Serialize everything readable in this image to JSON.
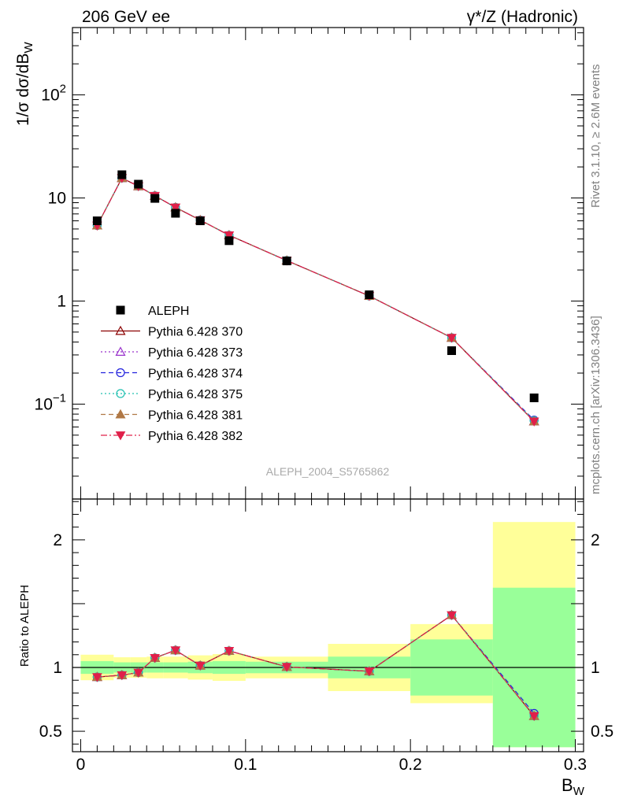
{
  "header": {
    "left": "206 GeV ee",
    "right": "γ*/Z (Hadronic)"
  },
  "side_text": {
    "top": "Rivet 3.1.10, ≥ 2.6M events",
    "bottom": "mcplots.cern.ch [arXiv:1306.3436]"
  },
  "analysis_label": "ALEPH_2004_S5765862",
  "chart_data": [
    {
      "type": "line",
      "panel": "main",
      "ylabel": "1/σ dσ/dB_W",
      "yscale": "log",
      "ylim": [
        0.012,
        450
      ],
      "xlim": [
        -0.005,
        0.305
      ],
      "ytick_labels": [
        {
          "value": 100,
          "base": "10",
          "exp": "2"
        },
        {
          "value": 10,
          "text": "10"
        },
        {
          "value": 1,
          "text": "1"
        },
        {
          "value": 0.1,
          "base": "10",
          "exp": "−1"
        }
      ],
      "x": [
        0.01,
        0.025,
        0.035,
        0.045,
        0.0575,
        0.0725,
        0.09,
        0.125,
        0.175,
        0.225,
        0.275
      ],
      "bin_edges": [
        0.0,
        0.02,
        0.03,
        0.04,
        0.05,
        0.065,
        0.08,
        0.1,
        0.15,
        0.2,
        0.25,
        0.3
      ],
      "data": {
        "name": "ALEPH",
        "values": [
          6.0,
          16.8,
          13.6,
          9.9,
          7.1,
          6.0,
          3.85,
          2.45,
          1.15,
          0.33,
          0.115
        ]
      },
      "series": [
        {
          "name": "Pythia 6.428 370",
          "color": "#8b0000",
          "dash": "",
          "marker": "triangle-open",
          "values": [
            5.4,
            15.6,
            13.0,
            10.5,
            8.1,
            6.1,
            4.35,
            2.47,
            1.12,
            0.44,
            0.068
          ]
        },
        {
          "name": "Pythia 6.428 373",
          "color": "#9932cc",
          "dash": "2,3",
          "marker": "triangle-open",
          "values": [
            5.4,
            15.6,
            13.0,
            10.5,
            8.1,
            6.1,
            4.35,
            2.47,
            1.12,
            0.44,
            0.068
          ]
        },
        {
          "name": "Pythia 6.428 374",
          "color": "#2222dd",
          "dash": "6,4",
          "marker": "circle-open",
          "values": [
            5.4,
            15.6,
            13.0,
            10.5,
            8.1,
            6.1,
            4.35,
            2.47,
            1.12,
            0.44,
            0.07
          ]
        },
        {
          "name": "Pythia 6.428 375",
          "color": "#20c0b0",
          "dash": "2,3",
          "marker": "circle-open",
          "values": [
            5.4,
            15.6,
            13.0,
            10.5,
            8.1,
            6.1,
            4.35,
            2.47,
            1.12,
            0.44,
            0.069
          ]
        },
        {
          "name": "Pythia 6.428 381",
          "color": "#b07845",
          "dash": "6,4",
          "marker": "triangle-filled",
          "values": [
            5.4,
            15.6,
            13.0,
            10.5,
            8.1,
            6.1,
            4.35,
            2.47,
            1.12,
            0.44,
            0.068
          ]
        },
        {
          "name": "Pythia 6.428 382",
          "color": "#e0204a",
          "dash": "8,3,2,3",
          "marker": "triangle-down-filled",
          "values": [
            5.4,
            15.6,
            13.0,
            10.5,
            8.1,
            6.1,
            4.35,
            2.47,
            1.12,
            0.44,
            0.068
          ]
        }
      ]
    },
    {
      "type": "line",
      "panel": "ratio",
      "ylabel": "Ratio to ALEPH",
      "ylim": [
        0.34,
        2.32
      ],
      "xlim": [
        -0.005,
        0.305
      ],
      "xlabel": "B_W",
      "xticks": [
        0,
        0.1,
        0.2,
        0.3
      ],
      "xtick_labels": [
        "0",
        "0.1",
        "0.2",
        "0.3"
      ],
      "yticks": [
        0.5,
        1,
        2
      ],
      "ytick_labels": [
        "0.5",
        "1",
        "2"
      ],
      "bin_edges": [
        0.0,
        0.02,
        0.03,
        0.04,
        0.05,
        0.065,
        0.08,
        0.1,
        0.15,
        0.2,
        0.25,
        0.3
      ],
      "band_inner": [
        [
          0.95,
          1.05
        ],
        [
          0.96,
          1.04
        ],
        [
          0.96,
          1.04
        ],
        [
          0.96,
          1.04
        ],
        [
          0.96,
          1.04
        ],
        [
          0.955,
          1.045
        ],
        [
          0.95,
          1.05
        ],
        [
          0.955,
          1.045
        ],
        [
          0.915,
          1.085
        ],
        [
          0.78,
          1.22
        ],
        [
          0.375,
          1.625
        ]
      ],
      "band_outer": [
        [
          0.9,
          1.1
        ],
        [
          0.92,
          1.08
        ],
        [
          0.92,
          1.08
        ],
        [
          0.915,
          1.085
        ],
        [
          0.915,
          1.085
        ],
        [
          0.905,
          1.095
        ],
        [
          0.895,
          1.105
        ],
        [
          0.915,
          1.085
        ],
        [
          0.815,
          1.185
        ],
        [
          0.72,
          1.34
        ],
        [
          0.375,
          2.14
        ]
      ],
      "x": [
        0.01,
        0.025,
        0.035,
        0.045,
        0.0575,
        0.0725,
        0.09,
        0.125,
        0.175,
        0.225,
        0.275
      ],
      "series_values": [
        0.925,
        0.94,
        0.96,
        1.075,
        1.135,
        1.015,
        1.13,
        1.005,
        0.97,
        1.41,
        0.62
      ],
      "series_374_values": [
        0.925,
        0.94,
        0.96,
        1.075,
        1.135,
        1.015,
        1.13,
        1.005,
        0.97,
        1.41,
        0.64
      ]
    }
  ]
}
